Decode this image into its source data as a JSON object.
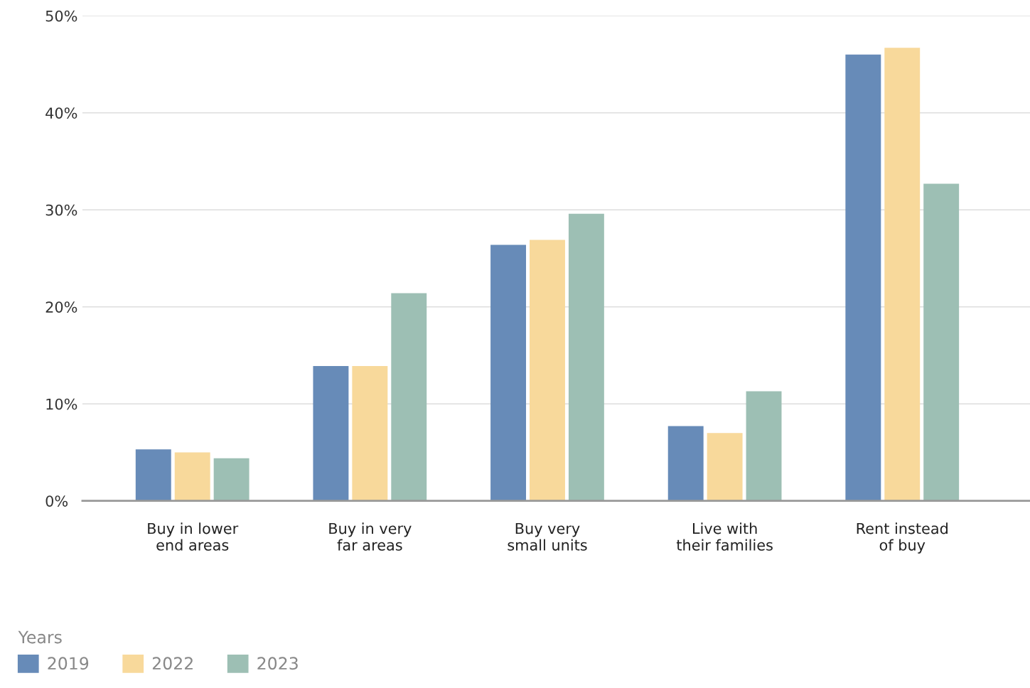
{
  "chart_data": {
    "type": "bar",
    "categories": [
      "Buy in lower\nend areas",
      "Buy in very\nfar areas",
      "Buy very\nsmall units",
      "Live with\ntheir families",
      "Rent instead\nof buy"
    ],
    "series": [
      {
        "name": "2019",
        "color": "#678bb8",
        "values": [
          5.3,
          13.9,
          26.4,
          7.7,
          46.0
        ]
      },
      {
        "name": "2022",
        "color": "#f8d99b",
        "values": [
          5.0,
          13.9,
          26.9,
          7.0,
          46.7
        ]
      },
      {
        "name": "2023",
        "color": "#9dbfb4",
        "values": [
          4.4,
          21.4,
          29.6,
          11.3,
          32.7
        ]
      }
    ],
    "ylim": [
      0,
      50
    ],
    "yticks": [
      {
        "value": 0,
        "label": "0%"
      },
      {
        "value": 10,
        "label": "10%"
      },
      {
        "value": 20,
        "label": "20%"
      },
      {
        "value": 30,
        "label": "30%"
      },
      {
        "value": 40,
        "label": "40%"
      },
      {
        "value": 50,
        "label": "50%"
      }
    ],
    "grid": "y",
    "legend": "bottom left",
    "legend_title": "Years"
  }
}
